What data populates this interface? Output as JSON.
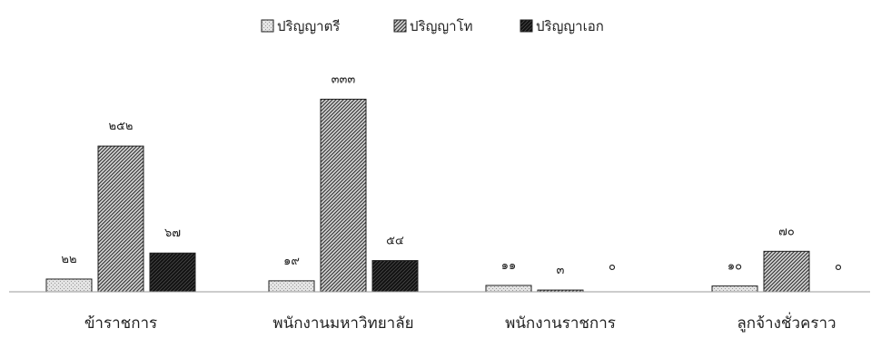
{
  "chart_data": {
    "type": "bar",
    "categories": [
      "ข้าราชการ",
      "พนักงานมหาวิทยาลัย",
      "พนักงานราชการ",
      "ลูกจ้างชั่วคราว"
    ],
    "series": [
      {
        "name": "ปริญญาตรี",
        "values": [
          22,
          19,
          11,
          10
        ],
        "value_labels": [
          "๒๒",
          "๑๙",
          "๑๑",
          "๑๐"
        ],
        "pattern": "light-dotted",
        "color": "#d6d6d6"
      },
      {
        "name": "ปริญญาโท",
        "values": [
          252,
          333,
          3,
          70
        ],
        "value_labels": [
          "๒๕๒",
          "๓๓๓",
          "๓",
          "๗๐"
        ],
        "pattern": "diagonal-hatch",
        "color": "#6e6e6e"
      },
      {
        "name": "ปริญญาเอก",
        "values": [
          67,
          54,
          0,
          0
        ],
        "value_labels": [
          "๖๗",
          "๕๔",
          "๐",
          "๐"
        ],
        "pattern": "dark-hatch",
        "color": "#1a1a1a"
      }
    ],
    "ylim": [
      0,
      340
    ],
    "grid": false,
    "legend_position": "top-center"
  }
}
